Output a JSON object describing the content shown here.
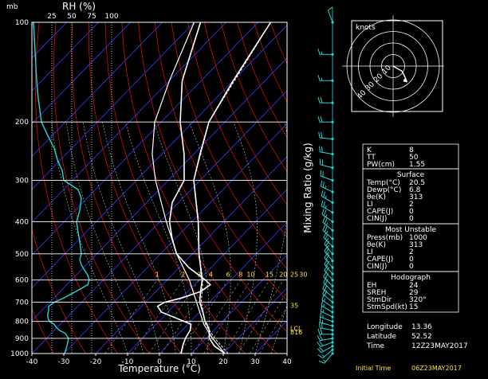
{
  "chart_data": {
    "type": "skew-t",
    "xlabel": "Temperature (°C)",
    "ylabel": "Mixing Ratio (g/kg)",
    "pressure_unit_label": "mb",
    "rh_label": "RH (%)",
    "rh_ticks": [
      "25",
      "50",
      "75",
      "100"
    ],
    "pressure_ticks": [
      100,
      200,
      300,
      400,
      500,
      600,
      700,
      800,
      900,
      1000
    ],
    "temperature_ticks": [
      -40,
      -30,
      -20,
      -10,
      0,
      10,
      20,
      30,
      40
    ],
    "xlim_at_1000mb": [
      -40,
      40
    ],
    "ylim_pressure_mb": [
      1000,
      100
    ],
    "mixing_ratio_labels": [
      {
        "text": "1",
        "value": 1
      },
      {
        "text": "2",
        "value": 2
      },
      {
        "text": "3",
        "value": 3
      },
      {
        "text": "4",
        "value": 4
      },
      {
        "text": "6",
        "value": 6
      },
      {
        "text": "8",
        "value": 8
      },
      {
        "text": "10",
        "value": 10
      },
      {
        "text": "15",
        "value": 15
      },
      {
        "text": "20",
        "value": 20
      },
      {
        "text": "25",
        "value": 25
      },
      {
        "text": "30",
        "value": 30
      }
    ],
    "side_markers": [
      {
        "text": "35",
        "pressure": 715
      },
      {
        "text": "LCL",
        "pressure": 840
      },
      {
        "text": "816",
        "pressure": 862
      }
    ],
    "series": [
      {
        "key": "temperature",
        "points": [
          [
            1000,
            20.5
          ],
          [
            950,
            15
          ],
          [
            900,
            11
          ],
          [
            850,
            8.5
          ],
          [
            816,
            6
          ],
          [
            800,
            4.5
          ],
          [
            750,
            1
          ],
          [
            700,
            -3
          ],
          [
            650,
            -6
          ],
          [
            600,
            -9
          ],
          [
            500,
            -18
          ],
          [
            400,
            -28
          ],
          [
            300,
            -42
          ],
          [
            250,
            -48
          ],
          [
            200,
            -55
          ],
          [
            150,
            -60
          ],
          [
            100,
            -66
          ]
        ]
      },
      {
        "key": "dewpoint",
        "points": [
          [
            1000,
            6.8
          ],
          [
            950,
            5
          ],
          [
            900,
            3.5
          ],
          [
            850,
            2.5
          ],
          [
            816,
            1
          ],
          [
            800,
            -2
          ],
          [
            750,
            -12
          ],
          [
            720,
            -15
          ],
          [
            700,
            -14
          ],
          [
            680,
            -10
          ],
          [
            650,
            -6
          ],
          [
            620,
            -5
          ],
          [
            600,
            -8
          ],
          [
            550,
            -17
          ],
          [
            500,
            -25
          ],
          [
            450,
            -31
          ],
          [
            400,
            -37
          ],
          [
            350,
            -42
          ],
          [
            300,
            -45
          ],
          [
            250,
            -53
          ],
          [
            200,
            -64
          ],
          [
            150,
            -76
          ],
          [
            100,
            -88
          ]
        ]
      },
      {
        "key": "parcel",
        "points": [
          [
            1000,
            20.5
          ],
          [
            900,
            12
          ],
          [
            816,
            5
          ],
          [
            700,
            -4
          ],
          [
            600,
            -13
          ],
          [
            500,
            -25
          ],
          [
            400,
            -38
          ],
          [
            300,
            -54
          ],
          [
            250,
            -63
          ],
          [
            200,
            -72
          ],
          [
            150,
            -80
          ],
          [
            100,
            -90
          ]
        ]
      },
      {
        "key": "virtual",
        "points": [
          [
            1000,
            21.5
          ],
          [
            900,
            12.7
          ],
          [
            816,
            5.5
          ],
          [
            700,
            -2.5
          ],
          [
            600,
            -8.8
          ],
          [
            500,
            -17.9
          ],
          [
            400,
            -27.9
          ],
          [
            300,
            -42
          ],
          [
            200,
            -55
          ],
          [
            100,
            -66
          ]
        ]
      },
      {
        "key": "rh_profile",
        "points": [
          [
            1000,
            41
          ],
          [
            950,
            44
          ],
          [
            900,
            46
          ],
          [
            870,
            42
          ],
          [
            850,
            34
          ],
          [
            830,
            30
          ],
          [
            816,
            28
          ],
          [
            800,
            22
          ],
          [
            780,
            20
          ],
          [
            760,
            20
          ],
          [
            740,
            21
          ],
          [
            720,
            21
          ],
          [
            700,
            28
          ],
          [
            680,
            40
          ],
          [
            660,
            50
          ],
          [
            640,
            60
          ],
          [
            620,
            70
          ],
          [
            600,
            72
          ],
          [
            580,
            70
          ],
          [
            560,
            66
          ],
          [
            540,
            62
          ],
          [
            520,
            60
          ],
          [
            500,
            62
          ],
          [
            460,
            60
          ],
          [
            430,
            58
          ],
          [
            400,
            56
          ],
          [
            370,
            60
          ],
          [
            340,
            62
          ],
          [
            320,
            58
          ],
          [
            300,
            40
          ],
          [
            280,
            38
          ],
          [
            260,
            32
          ],
          [
            240,
            28
          ],
          [
            220,
            20
          ],
          [
            200,
            12
          ],
          [
            170,
            8
          ],
          [
            150,
            6
          ],
          [
            100,
            2
          ]
        ]
      }
    ],
    "wind_barbs": [
      {
        "pressure": 1000,
        "dir": 220,
        "spd": 15
      },
      {
        "pressure": 975,
        "dir": 230,
        "spd": 15
      },
      {
        "pressure": 950,
        "dir": 240,
        "spd": 20
      },
      {
        "pressure": 925,
        "dir": 250,
        "spd": 20
      },
      {
        "pressure": 900,
        "dir": 260,
        "spd": 20
      },
      {
        "pressure": 875,
        "dir": 270,
        "spd": 20
      },
      {
        "pressure": 850,
        "dir": 280,
        "spd": 20
      },
      {
        "pressure": 825,
        "dir": 285,
        "spd": 15
      },
      {
        "pressure": 800,
        "dir": 290,
        "spd": 15
      },
      {
        "pressure": 775,
        "dir": 295,
        "spd": 15
      },
      {
        "pressure": 750,
        "dir": 300,
        "spd": 15
      },
      {
        "pressure": 725,
        "dir": 305,
        "spd": 15
      },
      {
        "pressure": 700,
        "dir": 310,
        "spd": 20
      },
      {
        "pressure": 675,
        "dir": 310,
        "spd": 20
      },
      {
        "pressure": 650,
        "dir": 315,
        "spd": 20
      },
      {
        "pressure": 625,
        "dir": 315,
        "spd": 20
      },
      {
        "pressure": 600,
        "dir": 320,
        "spd": 20
      },
      {
        "pressure": 575,
        "dir": 320,
        "spd": 20
      },
      {
        "pressure": 550,
        "dir": 320,
        "spd": 20
      },
      {
        "pressure": 525,
        "dir": 320,
        "spd": 25
      },
      {
        "pressure": 500,
        "dir": 320,
        "spd": 25
      },
      {
        "pressure": 475,
        "dir": 315,
        "spd": 25
      },
      {
        "pressure": 450,
        "dir": 310,
        "spd": 25
      },
      {
        "pressure": 425,
        "dir": 310,
        "spd": 25
      },
      {
        "pressure": 400,
        "dir": 305,
        "spd": 25
      },
      {
        "pressure": 375,
        "dir": 300,
        "spd": 25
      },
      {
        "pressure": 350,
        "dir": 300,
        "spd": 25
      },
      {
        "pressure": 325,
        "dir": 295,
        "spd": 25
      },
      {
        "pressure": 300,
        "dir": 290,
        "spd": 20
      },
      {
        "pressure": 275,
        "dir": 285,
        "spd": 20
      },
      {
        "pressure": 250,
        "dir": 280,
        "spd": 20
      },
      {
        "pressure": 225,
        "dir": 275,
        "spd": 20
      },
      {
        "pressure": 200,
        "dir": 270,
        "spd": 20
      },
      {
        "pressure": 175,
        "dir": 270,
        "spd": 20
      },
      {
        "pressure": 150,
        "dir": 270,
        "spd": 15
      },
      {
        "pressure": 125,
        "dir": 270,
        "spd": 15
      },
      {
        "pressure": 100,
        "dir": 340,
        "spd": 10
      }
    ],
    "hodograph": {
      "label": "knots",
      "ring_labels": [
        "10",
        "20",
        "30",
        "40"
      ],
      "ring_values_kt": [
        10,
        20,
        30,
        40
      ],
      "points_kt": [
        [
          3.8,
          -2.2
        ],
        [
          7.5,
          -4.3
        ],
        [
          9,
          -7
        ],
        [
          10,
          -9
        ],
        [
          11,
          -11
        ],
        [
          12,
          -14
        ]
      ]
    },
    "colors": {
      "temperature": "#ffffff",
      "dewpoint": "#ffffff",
      "parcel": "#ffffff",
      "rh_profile": "#27d6d6",
      "isotherm": "#3a3aff",
      "dry_adiabat": "#cc1010",
      "moist_adiabat": "#aaaaaa",
      "mixing_ratio": "#888888",
      "wind_barb": "#27d6d6",
      "label_yellow": "#ffe14d"
    }
  },
  "indices": {
    "top": [
      {
        "label": "K",
        "value": "8"
      },
      {
        "label": "TT",
        "value": "50"
      },
      {
        "label": "PW(cm)",
        "value": "1.55"
      }
    ],
    "surface": {
      "title": "Surface",
      "rows": [
        {
          "label": "Temp(°C)",
          "value": "20.5"
        },
        {
          "label": "Dewp(°C)",
          "value": "6.8"
        },
        {
          "label": "θe(K)",
          "value": "313"
        },
        {
          "label": "LI",
          "value": "2"
        },
        {
          "label": "CAPE(J)",
          "value": "0"
        },
        {
          "label": "CIN(J)",
          "value": "0"
        }
      ]
    },
    "most_unstable": {
      "title": "Most Unstable",
      "rows": [
        {
          "label": "Press(mb)",
          "value": "1000"
        },
        {
          "label": "θe(K)",
          "value": "313"
        },
        {
          "label": "LI",
          "value": "2"
        },
        {
          "label": "CAPE(J)",
          "value": "0"
        },
        {
          "label": "CIN(J)",
          "value": "0"
        }
      ]
    },
    "hodograph": {
      "title": "Hodograph",
      "rows": [
        {
          "label": "EH",
          "value": "24"
        },
        {
          "label": "SREH",
          "value": "29"
        },
        {
          "label": "StmDir",
          "value": "320°"
        },
        {
          "label": "StmSpd(kt)",
          "value": "15"
        }
      ]
    }
  },
  "station": {
    "rows": [
      {
        "label": "Longitude",
        "value": "13.36"
      },
      {
        "label": "Latitude",
        "value": "52.52"
      },
      {
        "label": "Time",
        "value": "12Z23MAY2017"
      }
    ]
  },
  "footer": {
    "label": "Initial Time",
    "value": "06Z23MAY2017"
  }
}
